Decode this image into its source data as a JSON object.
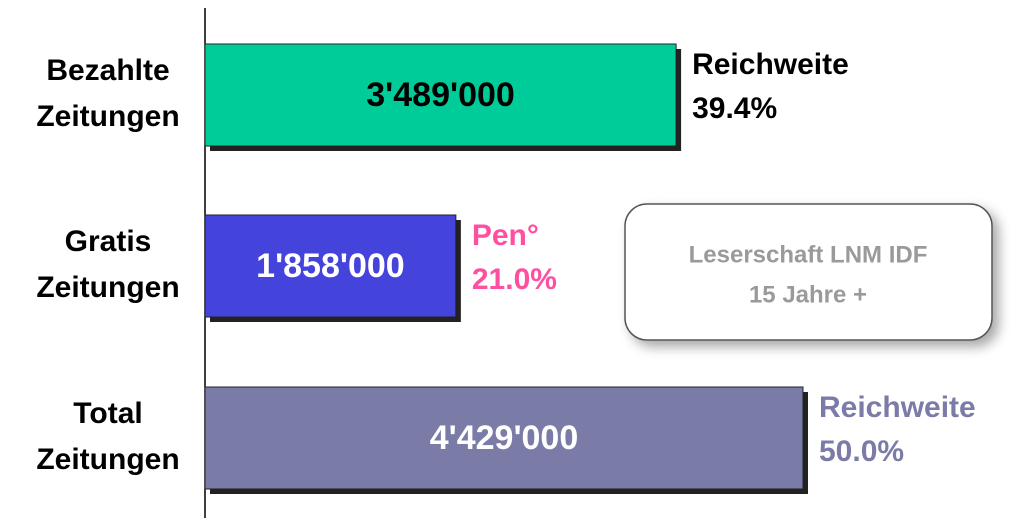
{
  "chart_data": {
    "type": "hbar",
    "categories": [
      "Bezahlte Zeitungen",
      "Gratis Zeitungen",
      "Total Zeitungen"
    ],
    "values": [
      3489000,
      1858000,
      4429000
    ],
    "value_labels": [
      "3'489'000",
      "1'858'000",
      "4'429'000"
    ],
    "colors": [
      "#00cc99",
      "#4444dd",
      "#7b7ba8"
    ],
    "value_label_colors": [
      "#000000",
      "#ffffff",
      "#ffffff"
    ],
    "annotations": [
      {
        "lines": [
          "Reichweite",
          "39.4%"
        ],
        "color": "#000000"
      },
      {
        "lines": [
          "Pen°",
          "21.0%"
        ],
        "color": "#ff4fa0"
      },
      {
        "lines": [
          "Reichweite",
          "50.0%"
        ],
        "color": "#7b7ba8"
      }
    ],
    "note": [
      "Leserschaft LNM IDF",
      "15 Jahre +"
    ]
  }
}
